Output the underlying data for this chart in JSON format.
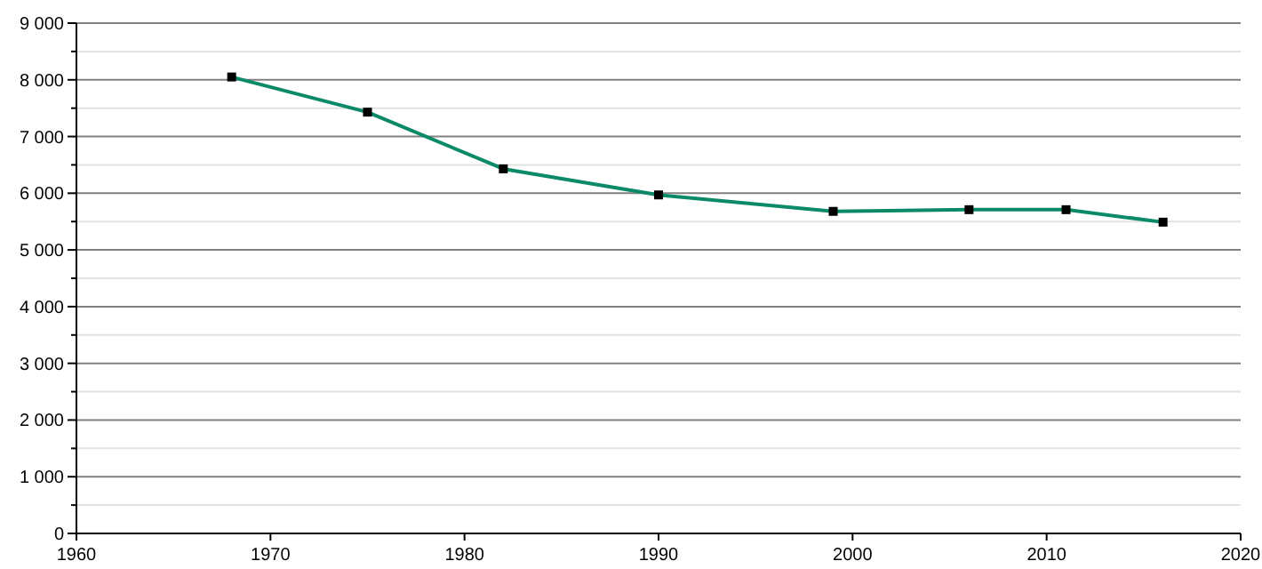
{
  "chart_data": {
    "type": "line",
    "x": [
      1968,
      1975,
      1982,
      1990,
      1999,
      2006,
      2011,
      2016
    ],
    "series": [
      {
        "color": "#0a8a66",
        "values": [
          8050,
          7430,
          6430,
          5970,
          5680,
          5710,
          5710,
          5490
        ]
      }
    ],
    "xlim": [
      1960,
      2020
    ],
    "xticks": [
      1960,
      1970,
      1980,
      1990,
      2000,
      2010,
      2020
    ],
    "ylim": [
      0,
      9000
    ],
    "yticks": [
      {
        "value": 0,
        "label": "0"
      },
      {
        "value": 500,
        "label": null
      },
      {
        "value": 1000,
        "label": "1 000"
      },
      {
        "value": 1500,
        "label": null
      },
      {
        "value": 2000,
        "label": "2 000"
      },
      {
        "value": 2500,
        "label": null
      },
      {
        "value": 3000,
        "label": "3 000"
      },
      {
        "value": 3500,
        "label": null
      },
      {
        "value": 4000,
        "label": "4 000"
      },
      {
        "value": 4500,
        "label": null
      },
      {
        "value": 5000,
        "label": "5 000"
      },
      {
        "value": 5500,
        "label": null
      },
      {
        "value": 6000,
        "label": "6 000"
      },
      {
        "value": 6500,
        "label": null
      },
      {
        "value": 7000,
        "label": "7 000"
      },
      {
        "value": 7500,
        "label": null
      },
      {
        "value": 8000,
        "label": "8 000"
      },
      {
        "value": 8500,
        "label": null
      },
      {
        "value": 9000,
        "label": "9 000"
      }
    ],
    "grid": "y",
    "marker": "square",
    "line_style": "solid"
  }
}
